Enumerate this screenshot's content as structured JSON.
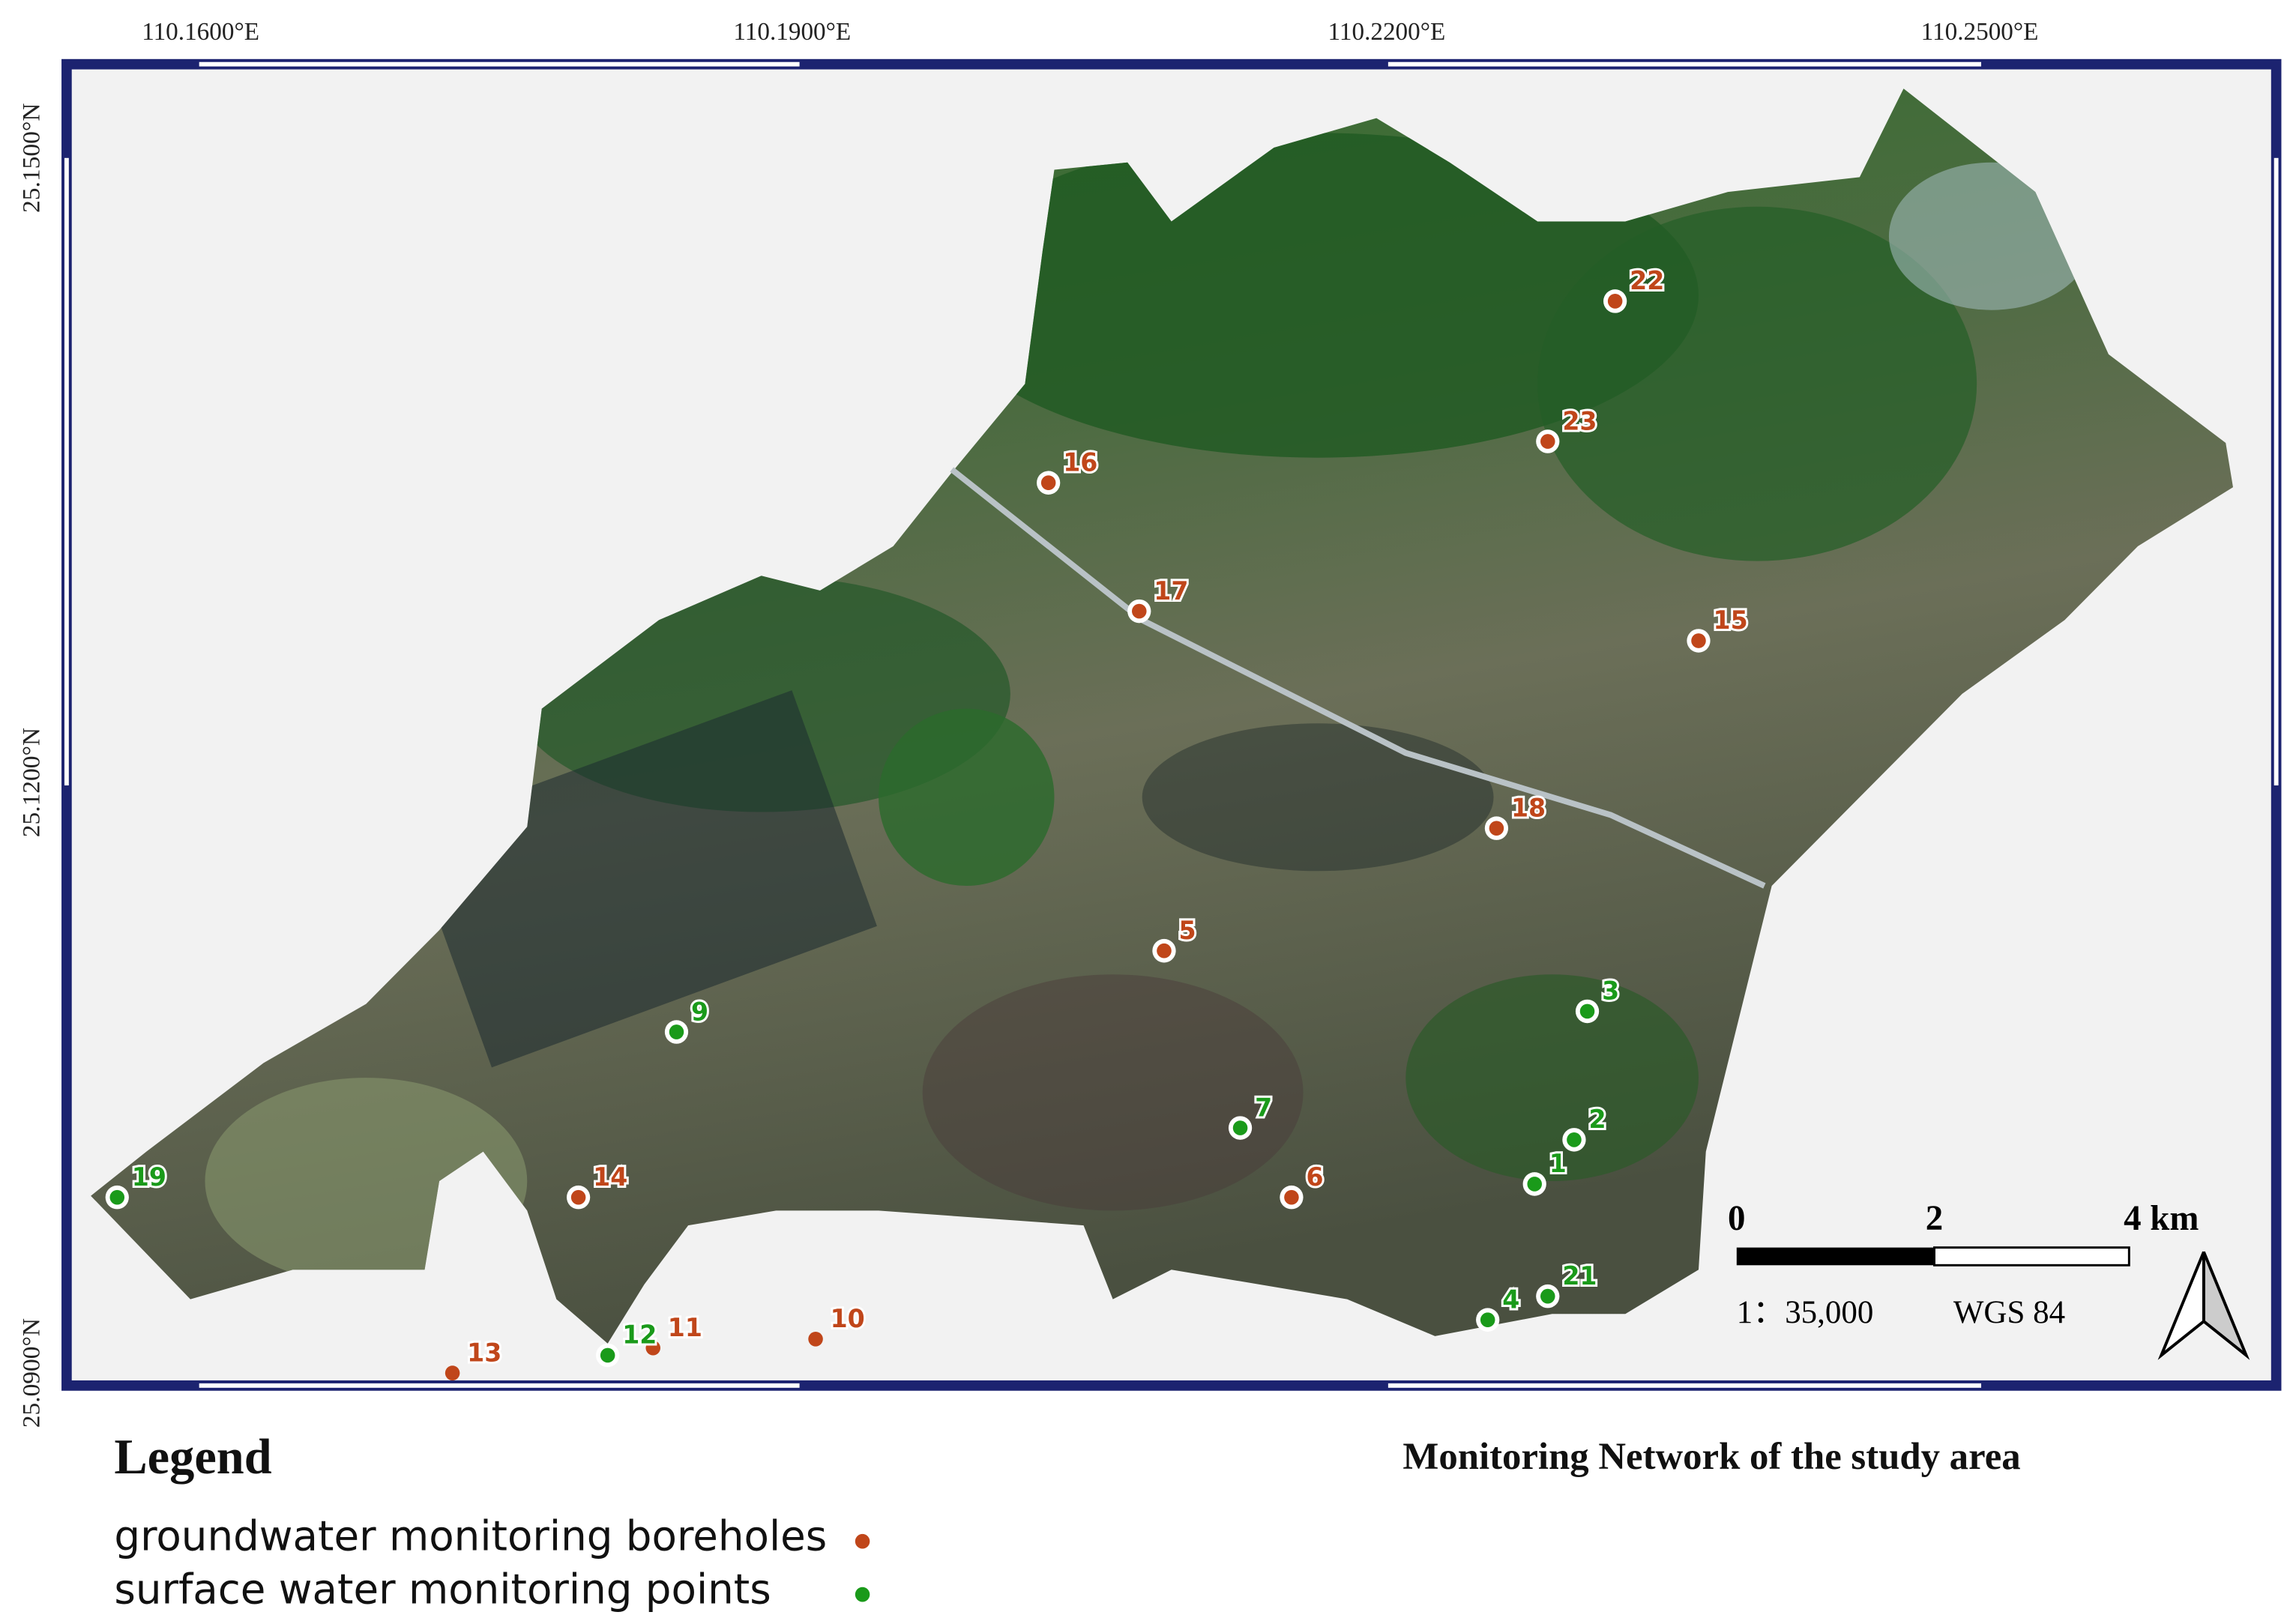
{
  "map": {
    "title": "Monitoring Network of the study area",
    "lon_labels": [
      "110.1600°E",
      "110.1900°E",
      "110.2200°E",
      "110.2500°E"
    ],
    "lat_labels": [
      "25.1500°N",
      "25.1200°N",
      "25.0900°N"
    ]
  },
  "scale_bar": {
    "ticks": [
      "0",
      "2",
      "4 km"
    ],
    "ratio": "1：35,000",
    "datum": "WGS 84"
  },
  "legend": {
    "title": "Legend",
    "items": [
      {
        "label": "groundwater monitoring boreholes",
        "color": "#c0461a",
        "points": [
          "22",
          "23",
          "16",
          "17",
          "15",
          "18",
          "5",
          "6",
          "14",
          "13",
          "11",
          "10"
        ]
      },
      {
        "label": "surface water monitoring points",
        "color": "#1a9a1a",
        "points": [
          "3",
          "9",
          "7",
          "2",
          "1",
          "19",
          "21",
          "4",
          "12"
        ]
      }
    ]
  }
}
